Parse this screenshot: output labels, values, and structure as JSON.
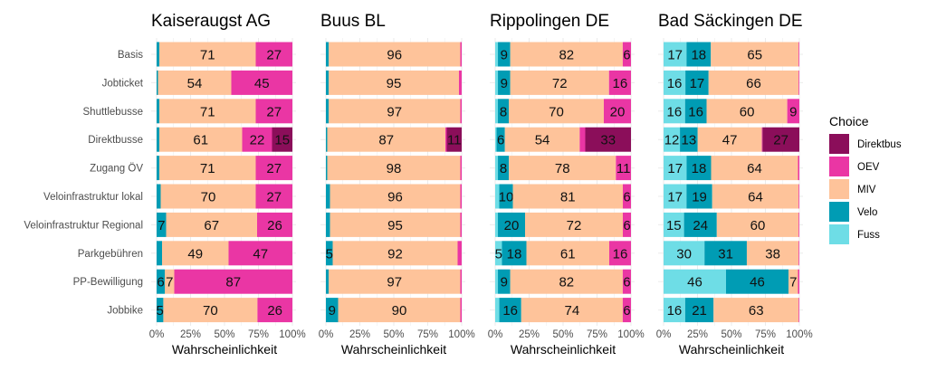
{
  "chart_data": {
    "type": "bar",
    "orientation": "horizontal-stacked",
    "xlabel": "Wahrscheinlichkeit",
    "xticks": [
      "0%",
      "25%",
      "50%",
      "75%",
      "100%"
    ],
    "xlim": [
      0,
      100
    ],
    "categories": [
      "Basis",
      "Jobticket",
      "Shuttlebusse",
      "Direktbusse",
      "Zugang ÖV",
      "Veloinfrastruktur lokal",
      "Veloinfrastruktur Regional",
      "Parkgebühren",
      "PP-Bewilligung",
      "Jobbike"
    ],
    "legend": {
      "title": "Choice",
      "position": "right",
      "entries": [
        "Direktbus",
        "OEV",
        "MIV",
        "Velo",
        "Fuss"
      ]
    },
    "stack_order": [
      "Fuss",
      "Velo",
      "MIV",
      "OEV",
      "Direktbus"
    ],
    "colors": {
      "Direktbus": "#8b0e5a",
      "OEV": "#ea36a4",
      "MIV": "#fec39a",
      "Velo": "#009cb4",
      "Fuss": "#6edde6"
    },
    "label_threshold": 5,
    "panels": [
      {
        "title": "Kaiseraugst AG",
        "rows": [
          [
            0,
            2,
            71,
            27,
            0
          ],
          [
            0,
            1,
            54,
            45,
            0
          ],
          [
            0,
            2,
            71,
            27,
            0
          ],
          [
            0,
            2,
            61,
            22,
            15
          ],
          [
            0,
            2,
            71,
            27,
            0
          ],
          [
            0,
            3,
            70,
            27,
            0
          ],
          [
            0,
            7,
            67,
            26,
            0
          ],
          [
            0,
            4,
            49,
            47,
            0
          ],
          [
            0,
            6,
            7,
            87,
            0
          ],
          [
            0,
            5,
            70,
            26,
            0
          ]
        ]
      },
      {
        "title": "Buus BL",
        "rows": [
          [
            0,
            2,
            96,
            1,
            0
          ],
          [
            0,
            2,
            95,
            2,
            0
          ],
          [
            0,
            2,
            97,
            1,
            0
          ],
          [
            0,
            1,
            87,
            1,
            11
          ],
          [
            0,
            1,
            98,
            1,
            0
          ],
          [
            0,
            3,
            96,
            1,
            0
          ],
          [
            0,
            3,
            95,
            1,
            0
          ],
          [
            0,
            5,
            92,
            3,
            0
          ],
          [
            0,
            2,
            97,
            1,
            0
          ],
          [
            0,
            9,
            90,
            1,
            0
          ]
        ]
      },
      {
        "title": "Rippolingen DE",
        "rows": [
          [
            2,
            9,
            82,
            6,
            0
          ],
          [
            2,
            9,
            72,
            16,
            0
          ],
          [
            2,
            8,
            70,
            20,
            0
          ],
          [
            1,
            6,
            54,
            4,
            33
          ],
          [
            2,
            8,
            78,
            11,
            0
          ],
          [
            3,
            10,
            81,
            6,
            0
          ],
          [
            2,
            20,
            72,
            6,
            0
          ],
          [
            5,
            18,
            61,
            16,
            0
          ],
          [
            2,
            9,
            82,
            6,
            0
          ],
          [
            3,
            16,
            74,
            6,
            0
          ]
        ]
      },
      {
        "title": "Bad Säckingen DE",
        "rows": [
          [
            17,
            18,
            65,
            0.5,
            0
          ],
          [
            16,
            17,
            66,
            0.5,
            0
          ],
          [
            16,
            16,
            60,
            9,
            0
          ],
          [
            12,
            13,
            47,
            0.5,
            27
          ],
          [
            17,
            18,
            64,
            1,
            0
          ],
          [
            17,
            19,
            64,
            0.5,
            0
          ],
          [
            15,
            24,
            60,
            0.5,
            0
          ],
          [
            30,
            31,
            38,
            0.5,
            0
          ],
          [
            46,
            46,
            7,
            1,
            0
          ],
          [
            16,
            21,
            63,
            0.5,
            0
          ]
        ]
      }
    ]
  }
}
